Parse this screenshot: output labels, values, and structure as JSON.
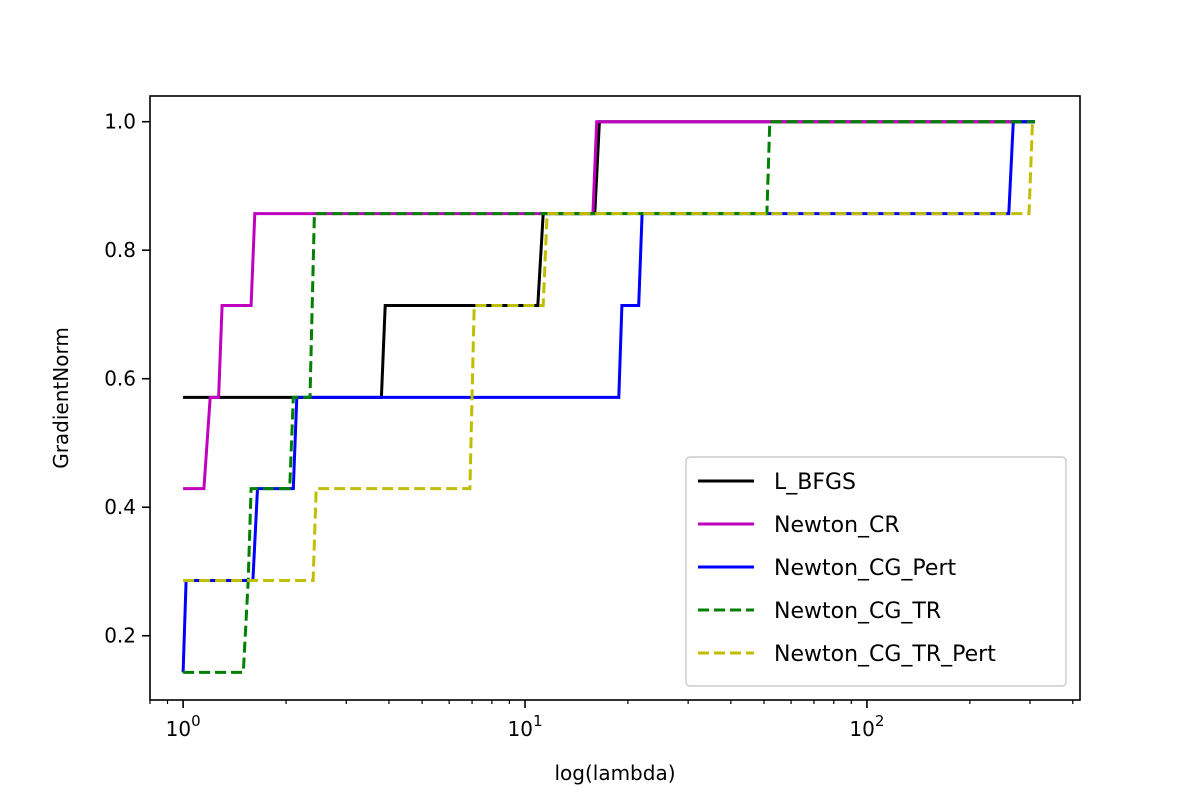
{
  "chart_data": {
    "type": "line",
    "title": "",
    "xlabel": "log(lambda)",
    "ylabel": "GradientNorm",
    "x_scale": "log",
    "xlim": [
      0.8,
      420
    ],
    "ylim": [
      0.1,
      1.04
    ],
    "x_ticks": [
      {
        "value": 1,
        "base": "10",
        "exp": "0"
      },
      {
        "value": 10,
        "base": "10",
        "exp": "1"
      },
      {
        "value": 100,
        "base": "10",
        "exp": "2"
      }
    ],
    "y_ticks": [
      {
        "value": 0.2,
        "label": "0.2"
      },
      {
        "value": 0.4,
        "label": "0.4"
      },
      {
        "value": 0.6,
        "label": "0.6"
      },
      {
        "value": 0.8,
        "label": "0.8"
      },
      {
        "value": 1.0,
        "label": "1.0"
      }
    ],
    "grid": false,
    "legend_position": "lower-right",
    "series": [
      {
        "name": "L_BFGS",
        "color": "#000000",
        "dash": "solid",
        "x": [
          1.0,
          2.2,
          3.8,
          3.9,
          10.9,
          11.3,
          16.0,
          16.5,
          310
        ],
        "y": [
          0.571,
          0.571,
          0.571,
          0.714,
          0.714,
          0.857,
          0.857,
          1.0,
          1.0
        ]
      },
      {
        "name": "Newton_CR",
        "color": "#bf00bf",
        "dash": "solid",
        "x": [
          1.0,
          1.15,
          1.2,
          1.27,
          1.3,
          1.58,
          1.62,
          15.8,
          16.2,
          310
        ],
        "y": [
          0.429,
          0.429,
          0.571,
          0.571,
          0.714,
          0.714,
          0.857,
          0.857,
          1.0,
          1.0
        ]
      },
      {
        "name": "Newton_CG_Pert",
        "color": "#0000ff",
        "dash": "solid",
        "x": [
          1.0,
          1.02,
          1.6,
          1.65,
          2.1,
          2.15,
          18.8,
          19.2,
          21.5,
          22.0,
          260,
          268,
          310
        ],
        "y": [
          0.143,
          0.286,
          0.286,
          0.429,
          0.429,
          0.571,
          0.571,
          0.714,
          0.714,
          0.857,
          0.857,
          1.0,
          1.0
        ]
      },
      {
        "name": "Newton_CG_TR",
        "color": "#008000",
        "dash": "dashed",
        "x": [
          1.0,
          1.5,
          1.55,
          1.58,
          2.05,
          2.1,
          2.35,
          2.42,
          51,
          52,
          310
        ],
        "y": [
          0.143,
          0.143,
          0.286,
          0.429,
          0.429,
          0.571,
          0.571,
          0.857,
          0.857,
          1.0,
          1.0
        ]
      },
      {
        "name": "Newton_CG_TR_Pert",
        "color": "#bfbf00",
        "dash": "dashed",
        "x": [
          1.0,
          2.4,
          2.45,
          6.9,
          7.1,
          11.3,
          11.6,
          298,
          305,
          310
        ],
        "y": [
          0.286,
          0.286,
          0.429,
          0.429,
          0.714,
          0.714,
          0.857,
          0.857,
          1.0,
          1.0
        ]
      }
    ]
  }
}
